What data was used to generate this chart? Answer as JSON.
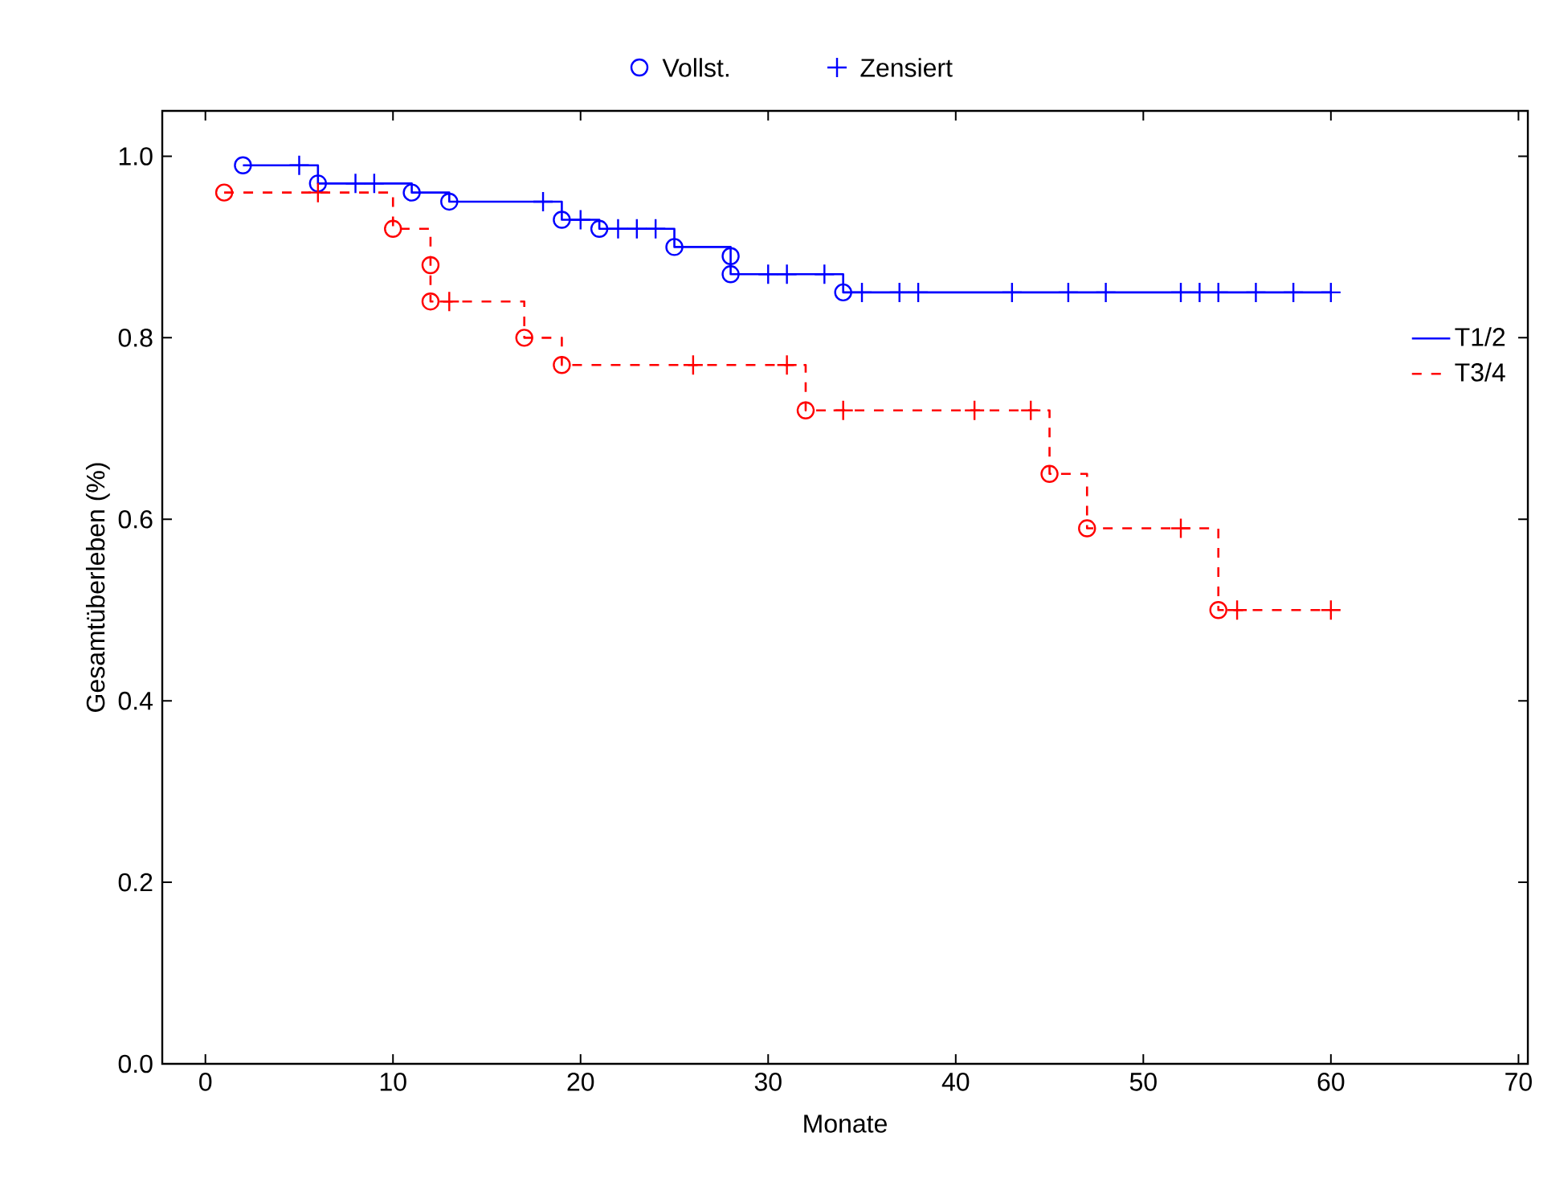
{
  "chart_data": {
    "type": "step",
    "xlabel": "Monate",
    "ylabel": "Gesamtüberleben (%)",
    "xlim": [
      -2.3,
      70.5
    ],
    "ylim": [
      0,
      1.05
    ],
    "xticks": [
      0,
      10,
      20,
      30,
      40,
      50,
      60,
      70
    ],
    "yticks": [
      {
        "value": 0,
        "label": "0.0"
      },
      {
        "value": 0.2,
        "label": "0.2"
      },
      {
        "value": 0.4,
        "label": "0.4"
      },
      {
        "value": 0.6,
        "label": "0.6"
      },
      {
        "value": 0.8,
        "label": "0.8"
      },
      {
        "value": 1.0,
        "label": "1.0"
      }
    ],
    "legend": "right",
    "grid": false,
    "series": [
      {
        "name": "T1/2",
        "color": "#0000ff",
        "line_style": "solid",
        "x": [
          2,
          6,
          11,
          13,
          19,
          21,
          25,
          28,
          34,
          60
        ],
        "values": [
          0.99,
          0.97,
          0.96,
          0.95,
          0.93,
          0.92,
          0.9,
          0.87,
          0.85,
          0.85
        ]
      },
      {
        "name": "T3/4",
        "color": "#ff0000",
        "line_style": "dashed",
        "x": [
          1,
          10,
          12,
          17,
          19,
          32,
          45,
          47,
          54,
          60
        ],
        "values": [
          0.96,
          0.92,
          0.84,
          0.8,
          0.77,
          0.72,
          0.65,
          0.59,
          0.5,
          0.5
        ]
      },
      {
        "name": "Vollst.",
        "type": "scatter",
        "marker": "circle",
        "x": [
          2,
          6,
          11,
          13,
          19,
          21,
          25,
          28,
          28,
          34,
          1,
          10,
          12,
          12,
          17,
          19,
          32,
          45,
          47,
          54
        ],
        "values": [
          0.99,
          0.97,
          0.96,
          0.95,
          0.93,
          0.92,
          0.9,
          0.89,
          0.87,
          0.85,
          0.96,
          0.92,
          0.88,
          0.84,
          0.8,
          0.77,
          0.72,
          0.65,
          0.59,
          0.5
        ],
        "colors": [
          "#0000ff",
          "#0000ff",
          "#0000ff",
          "#0000ff",
          "#0000ff",
          "#0000ff",
          "#0000ff",
          "#0000ff",
          "#0000ff",
          "#0000ff",
          "#ff0000",
          "#ff0000",
          "#ff0000",
          "#ff0000",
          "#ff0000",
          "#ff0000",
          "#ff0000",
          "#ff0000",
          "#ff0000",
          "#ff0000"
        ]
      },
      {
        "name": "Zensiert",
        "type": "scatter",
        "marker": "cross",
        "x": [
          5,
          8,
          9,
          18,
          20,
          22,
          23,
          24,
          30,
          31,
          33,
          35,
          37,
          38,
          43,
          46,
          48,
          52,
          53,
          54,
          56,
          58,
          60,
          6,
          13,
          26,
          31,
          34,
          41,
          44,
          52,
          55,
          60
        ],
        "values": [
          0.99,
          0.97,
          0.97,
          0.95,
          0.93,
          0.92,
          0.92,
          0.92,
          0.87,
          0.87,
          0.87,
          0.85,
          0.85,
          0.85,
          0.85,
          0.85,
          0.85,
          0.85,
          0.85,
          0.85,
          0.85,
          0.85,
          0.85,
          0.96,
          0.84,
          0.77,
          0.77,
          0.72,
          0.72,
          0.72,
          0.59,
          0.5,
          0.5
        ],
        "colors": [
          "#0000ff",
          "#0000ff",
          "#0000ff",
          "#0000ff",
          "#0000ff",
          "#0000ff",
          "#0000ff",
          "#0000ff",
          "#0000ff",
          "#0000ff",
          "#0000ff",
          "#0000ff",
          "#0000ff",
          "#0000ff",
          "#0000ff",
          "#0000ff",
          "#0000ff",
          "#0000ff",
          "#0000ff",
          "#0000ff",
          "#0000ff",
          "#0000ff",
          "#0000ff",
          "#ff0000",
          "#ff0000",
          "#ff0000",
          "#ff0000",
          "#ff0000",
          "#ff0000",
          "#ff0000",
          "#ff0000",
          "#ff0000",
          "#ff0000"
        ]
      }
    ]
  }
}
